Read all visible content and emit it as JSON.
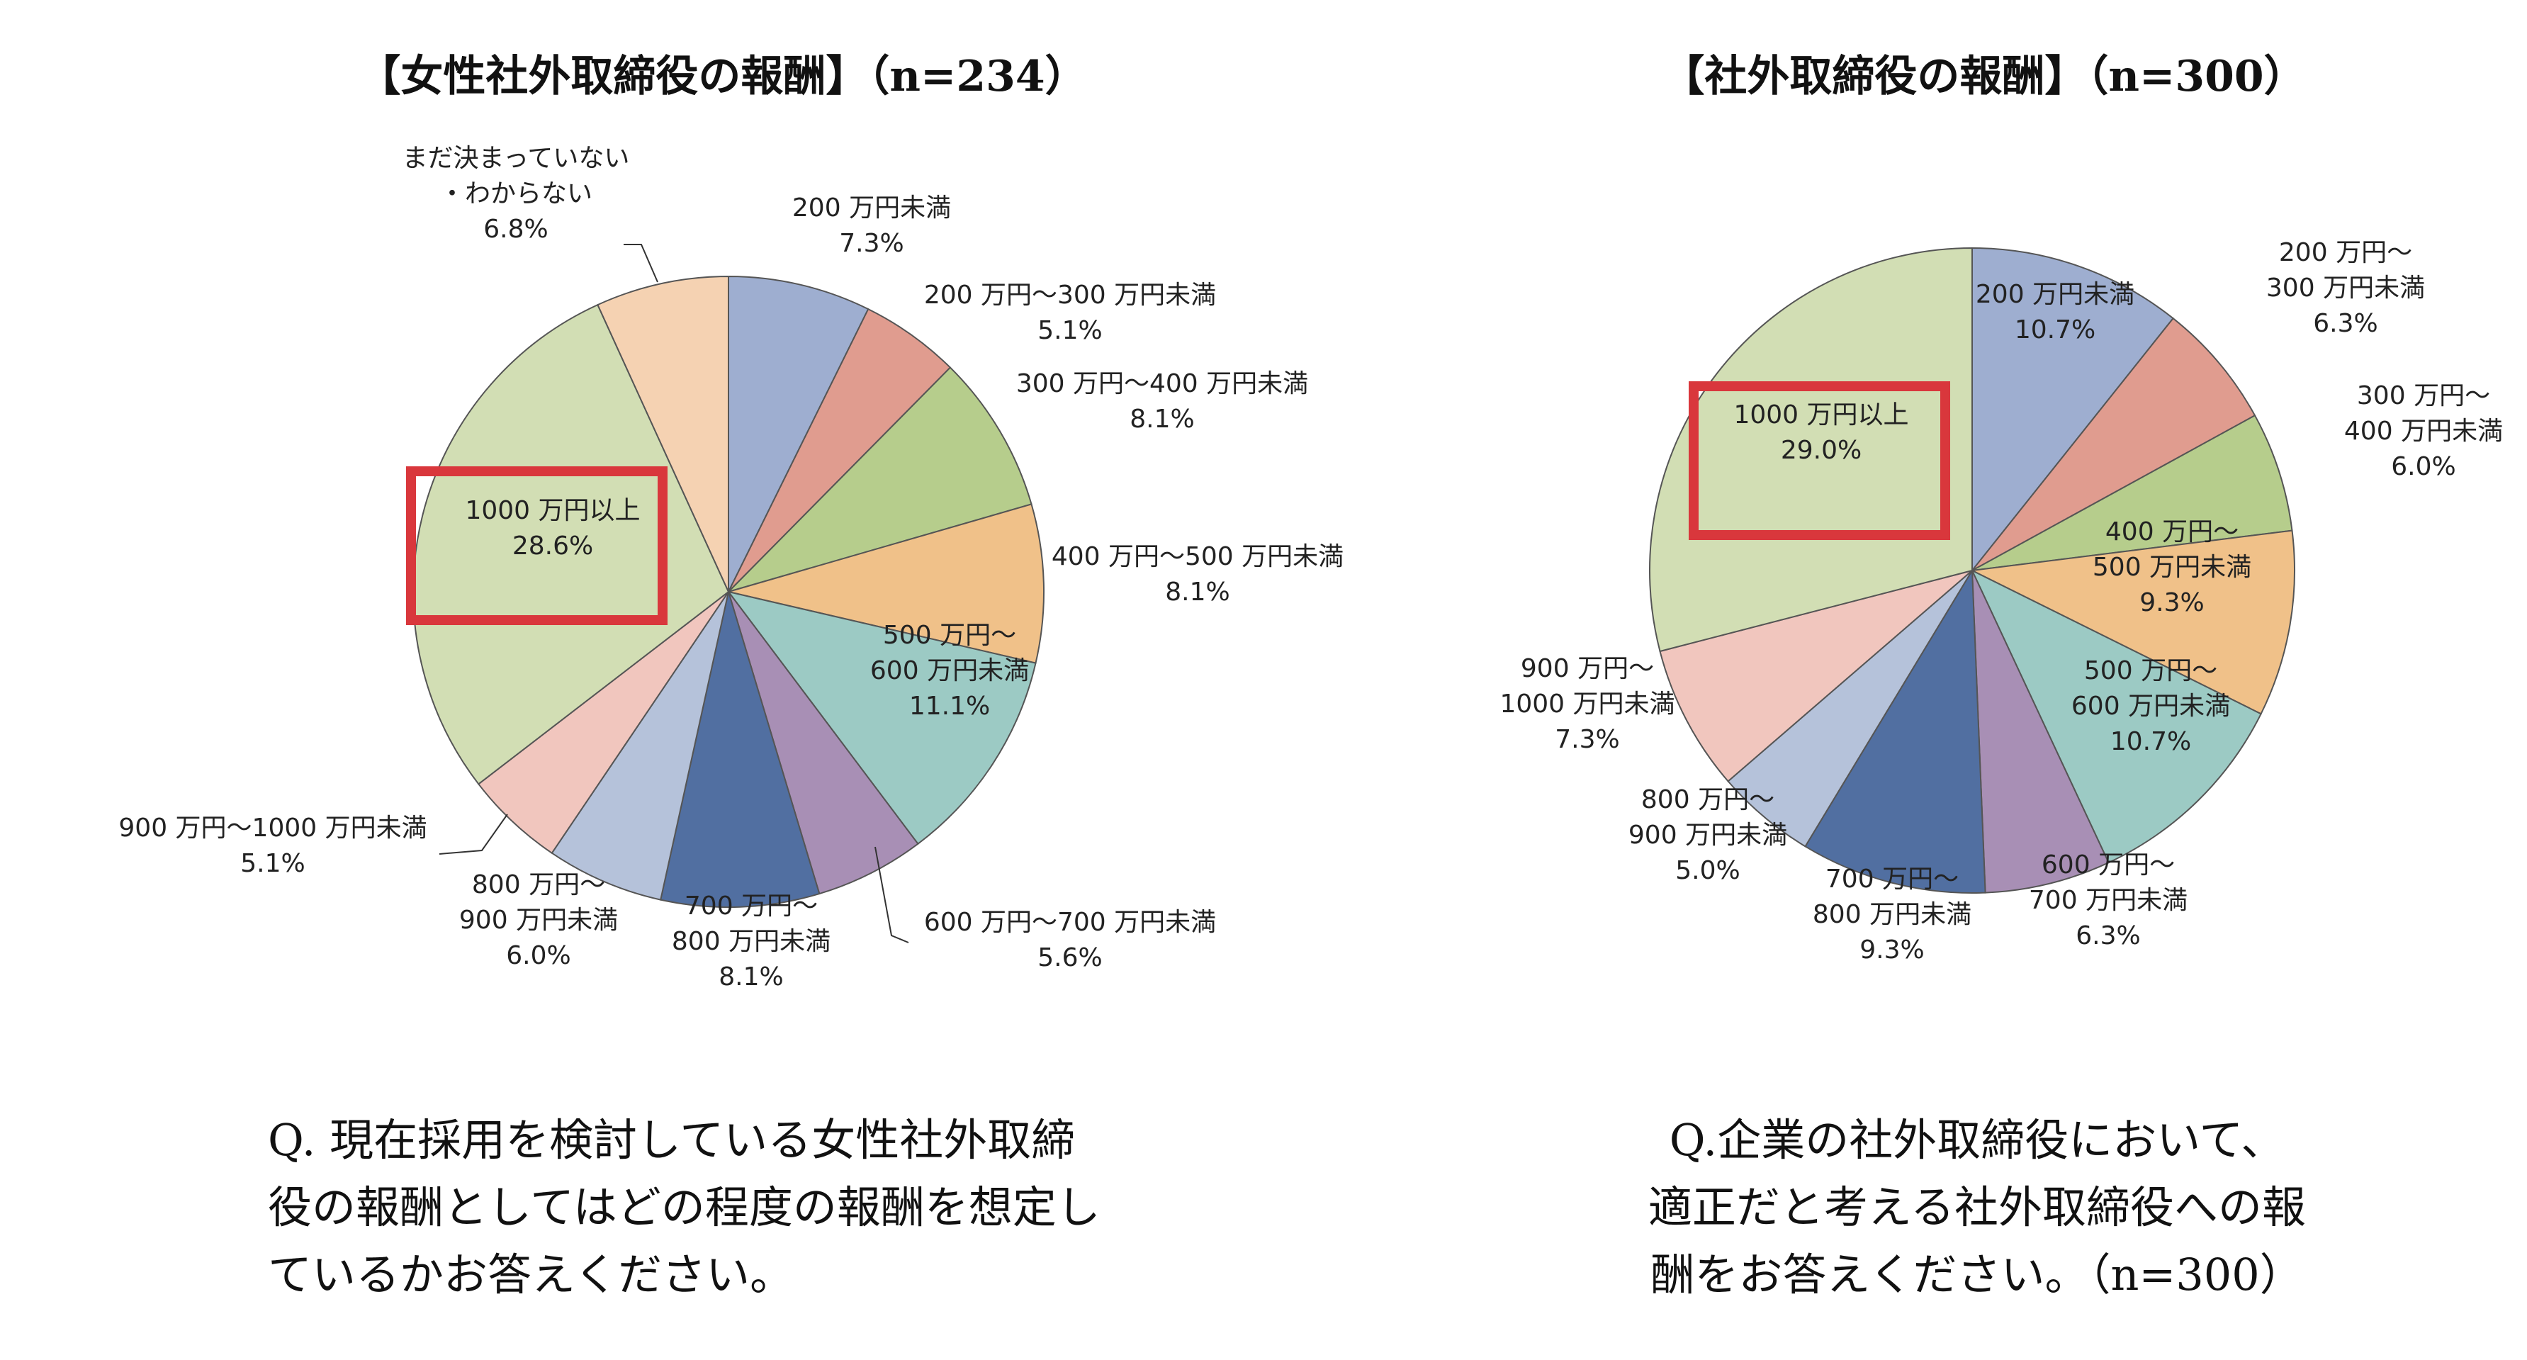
{
  "charts": [
    {
      "title": "【女性社外取締役の報酬】（n=234）",
      "question": [
        "Q. 現在採用を検討している女性社外取締",
        "役の報酬としてはどの程度の報酬を想定し",
        "ているかお答えください。"
      ],
      "chart_data": {
        "type": "pie",
        "title": "【女性社外取締役の報酬】（n=234）",
        "n": 234,
        "slices": [
          {
            "label": [
              "200 万円未満"
            ],
            "value": 7.3,
            "value_label": "7.3%",
            "color": "#9eaed0"
          },
          {
            "label": [
              "200 万円～300 万円未満"
            ],
            "value": 5.1,
            "value_label": "5.1%",
            "color": "#e09c8f"
          },
          {
            "label": [
              "300 万円～400 万円未満"
            ],
            "value": 8.1,
            "value_label": "8.1%",
            "color": "#b6cd8c"
          },
          {
            "label": [
              "400 万円～500 万円未満"
            ],
            "value": 8.1,
            "value_label": "8.1%",
            "color": "#f0c189"
          },
          {
            "label": [
              "500 万円～",
              "600 万円未満"
            ],
            "value": 11.1,
            "value_label": "11.1%",
            "color": "#9ccac4"
          },
          {
            "label": [
              "600 万円～700 万円未満"
            ],
            "value": 5.6,
            "value_label": "5.6%",
            "color": "#a88fb5"
          },
          {
            "label": [
              "700 万円～",
              "800 万円未満"
            ],
            "value": 8.1,
            "value_label": "8.1%",
            "color": "#516fa1"
          },
          {
            "label": [
              "800 万円～",
              "900 万円未満"
            ],
            "value": 6.0,
            "value_label": "6.0%",
            "color": "#b5c2da"
          },
          {
            "label": [
              "900 万円～1000 万円未満"
            ],
            "value": 5.1,
            "value_label": "5.1%",
            "color": "#f1c6be"
          },
          {
            "label": [
              "1000 万円以上"
            ],
            "value": 28.6,
            "value_label": "28.6%",
            "color": "#d2deb4",
            "highlighted": true
          },
          {
            "label": [
              "まだ決まっていない",
              "・わからない"
            ],
            "value": 6.8,
            "value_label": "6.8%",
            "color": "#f5d2b2"
          }
        ]
      }
    },
    {
      "title": "【社外取締役の報酬】（n=300）",
      "question": [
        "Q.企業の社外取締役において、",
        "適正だと考える社外取締役への報",
        "酬をお答えください。（n=300）"
      ],
      "chart_data": {
        "type": "pie",
        "title": "【社外取締役の報酬】（n=300）",
        "n": 300,
        "slices": [
          {
            "label": [
              "200 万円未満"
            ],
            "value": 10.7,
            "value_label": "10.7%",
            "color": "#9eaed0"
          },
          {
            "label": [
              "200 万円～",
              "300 万円未満"
            ],
            "value": 6.3,
            "value_label": "6.3%",
            "color": "#e09c8f"
          },
          {
            "label": [
              "300 万円～",
              "400 万円未満"
            ],
            "value": 6.0,
            "value_label": "6.0%",
            "color": "#b6cd8c"
          },
          {
            "label": [
              "400 万円～",
              "500 万円未満"
            ],
            "value": 9.3,
            "value_label": "9.3%",
            "color": "#f0c189"
          },
          {
            "label": [
              "500 万円～",
              "600 万円未満"
            ],
            "value": 10.7,
            "value_label": "10.7%",
            "color": "#9ccac4"
          },
          {
            "label": [
              "600 万円～",
              "700 万円未満"
            ],
            "value": 6.3,
            "value_label": "6.3%",
            "color": "#a88fb5"
          },
          {
            "label": [
              "700 万円～",
              "800 万円未満"
            ],
            "value": 9.3,
            "value_label": "9.3%",
            "color": "#516fa1"
          },
          {
            "label": [
              "800 万円～",
              "900 万円未満"
            ],
            "value": 5.0,
            "value_label": "5.0%",
            "color": "#b5c2da"
          },
          {
            "label": [
              "900 万円～",
              "1000 万円未満"
            ],
            "value": 7.3,
            "value_label": "7.3%",
            "color": "#f1c6be"
          },
          {
            "label": [
              "1000 万円以上"
            ],
            "value": 29.0,
            "value_label": "29.0%",
            "color": "#d2deb4",
            "highlighted": true
          }
        ]
      }
    }
  ],
  "highlight_color": "#d9373c"
}
